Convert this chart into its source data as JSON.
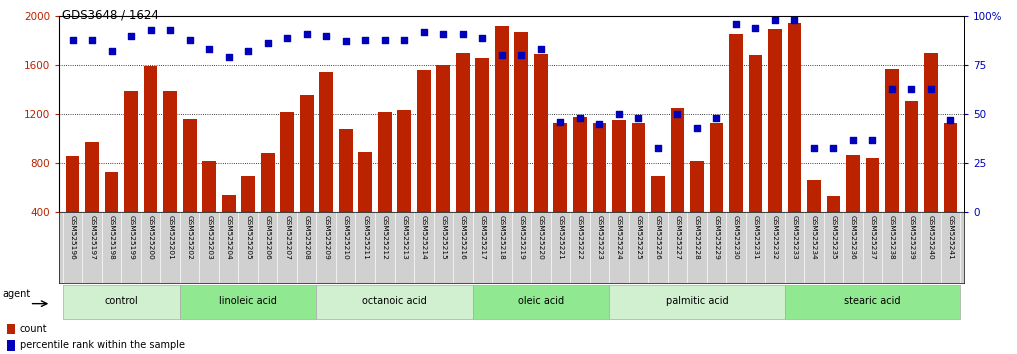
{
  "title": "GDS3648 / 1624",
  "samples": [
    "GSM525196",
    "GSM525197",
    "GSM525198",
    "GSM525199",
    "GSM525200",
    "GSM525201",
    "GSM525202",
    "GSM525203",
    "GSM525204",
    "GSM525205",
    "GSM525206",
    "GSM525207",
    "GSM525208",
    "GSM525209",
    "GSM525210",
    "GSM525211",
    "GSM525212",
    "GSM525213",
    "GSM525214",
    "GSM525215",
    "GSM525216",
    "GSM525217",
    "GSM525218",
    "GSM525219",
    "GSM525220",
    "GSM525221",
    "GSM525222",
    "GSM525223",
    "GSM525224",
    "GSM525225",
    "GSM525226",
    "GSM525227",
    "GSM525228",
    "GSM525229",
    "GSM525230",
    "GSM525231",
    "GSM525232",
    "GSM525233",
    "GSM525234",
    "GSM525235",
    "GSM525236",
    "GSM525237",
    "GSM525238",
    "GSM525239",
    "GSM525240",
    "GSM525241"
  ],
  "counts": [
    860,
    970,
    730,
    1390,
    1590,
    1390,
    1160,
    820,
    540,
    700,
    880,
    1220,
    1360,
    1540,
    1080,
    890,
    1220,
    1230,
    1560,
    1600,
    1700,
    1660,
    1920,
    1870,
    1690,
    1130,
    1180,
    1130,
    1150,
    1130,
    700,
    1250,
    820,
    1130,
    1850,
    1680,
    1890,
    1940,
    660,
    530,
    870,
    840,
    1570,
    1310,
    1700,
    1130
  ],
  "percentile_ranks": [
    88,
    88,
    82,
    90,
    93,
    93,
    88,
    83,
    79,
    82,
    86,
    89,
    91,
    90,
    87,
    88,
    88,
    88,
    92,
    91,
    91,
    89,
    80,
    80,
    83,
    46,
    48,
    45,
    50,
    48,
    33,
    50,
    43,
    48,
    96,
    94,
    98,
    98,
    33,
    33,
    37,
    37,
    63,
    63,
    63,
    47
  ],
  "groups": [
    {
      "name": "control",
      "start": 0,
      "end": 5,
      "color": "#d0f0d0"
    },
    {
      "name": "linoleic acid",
      "start": 6,
      "end": 12,
      "color": "#90e890"
    },
    {
      "name": "octanoic acid",
      "start": 13,
      "end": 20,
      "color": "#d0f0d0"
    },
    {
      "name": "oleic acid",
      "start": 21,
      "end": 27,
      "color": "#90e890"
    },
    {
      "name": "palmitic acid",
      "start": 28,
      "end": 36,
      "color": "#d0f0d0"
    },
    {
      "name": "stearic acid",
      "start": 37,
      "end": 45,
      "color": "#90e890"
    }
  ],
  "bar_color": "#bb2200",
  "dot_color": "#0000bb",
  "ylim_left": [
    400,
    2000
  ],
  "ylim_right": [
    0,
    100
  ],
  "left_ticks": [
    400,
    800,
    1200,
    1600,
    2000
  ],
  "right_ticks": [
    0,
    25,
    50,
    75,
    100
  ],
  "label_bg": "#d0d0d0",
  "plot_bg": "#ffffff"
}
